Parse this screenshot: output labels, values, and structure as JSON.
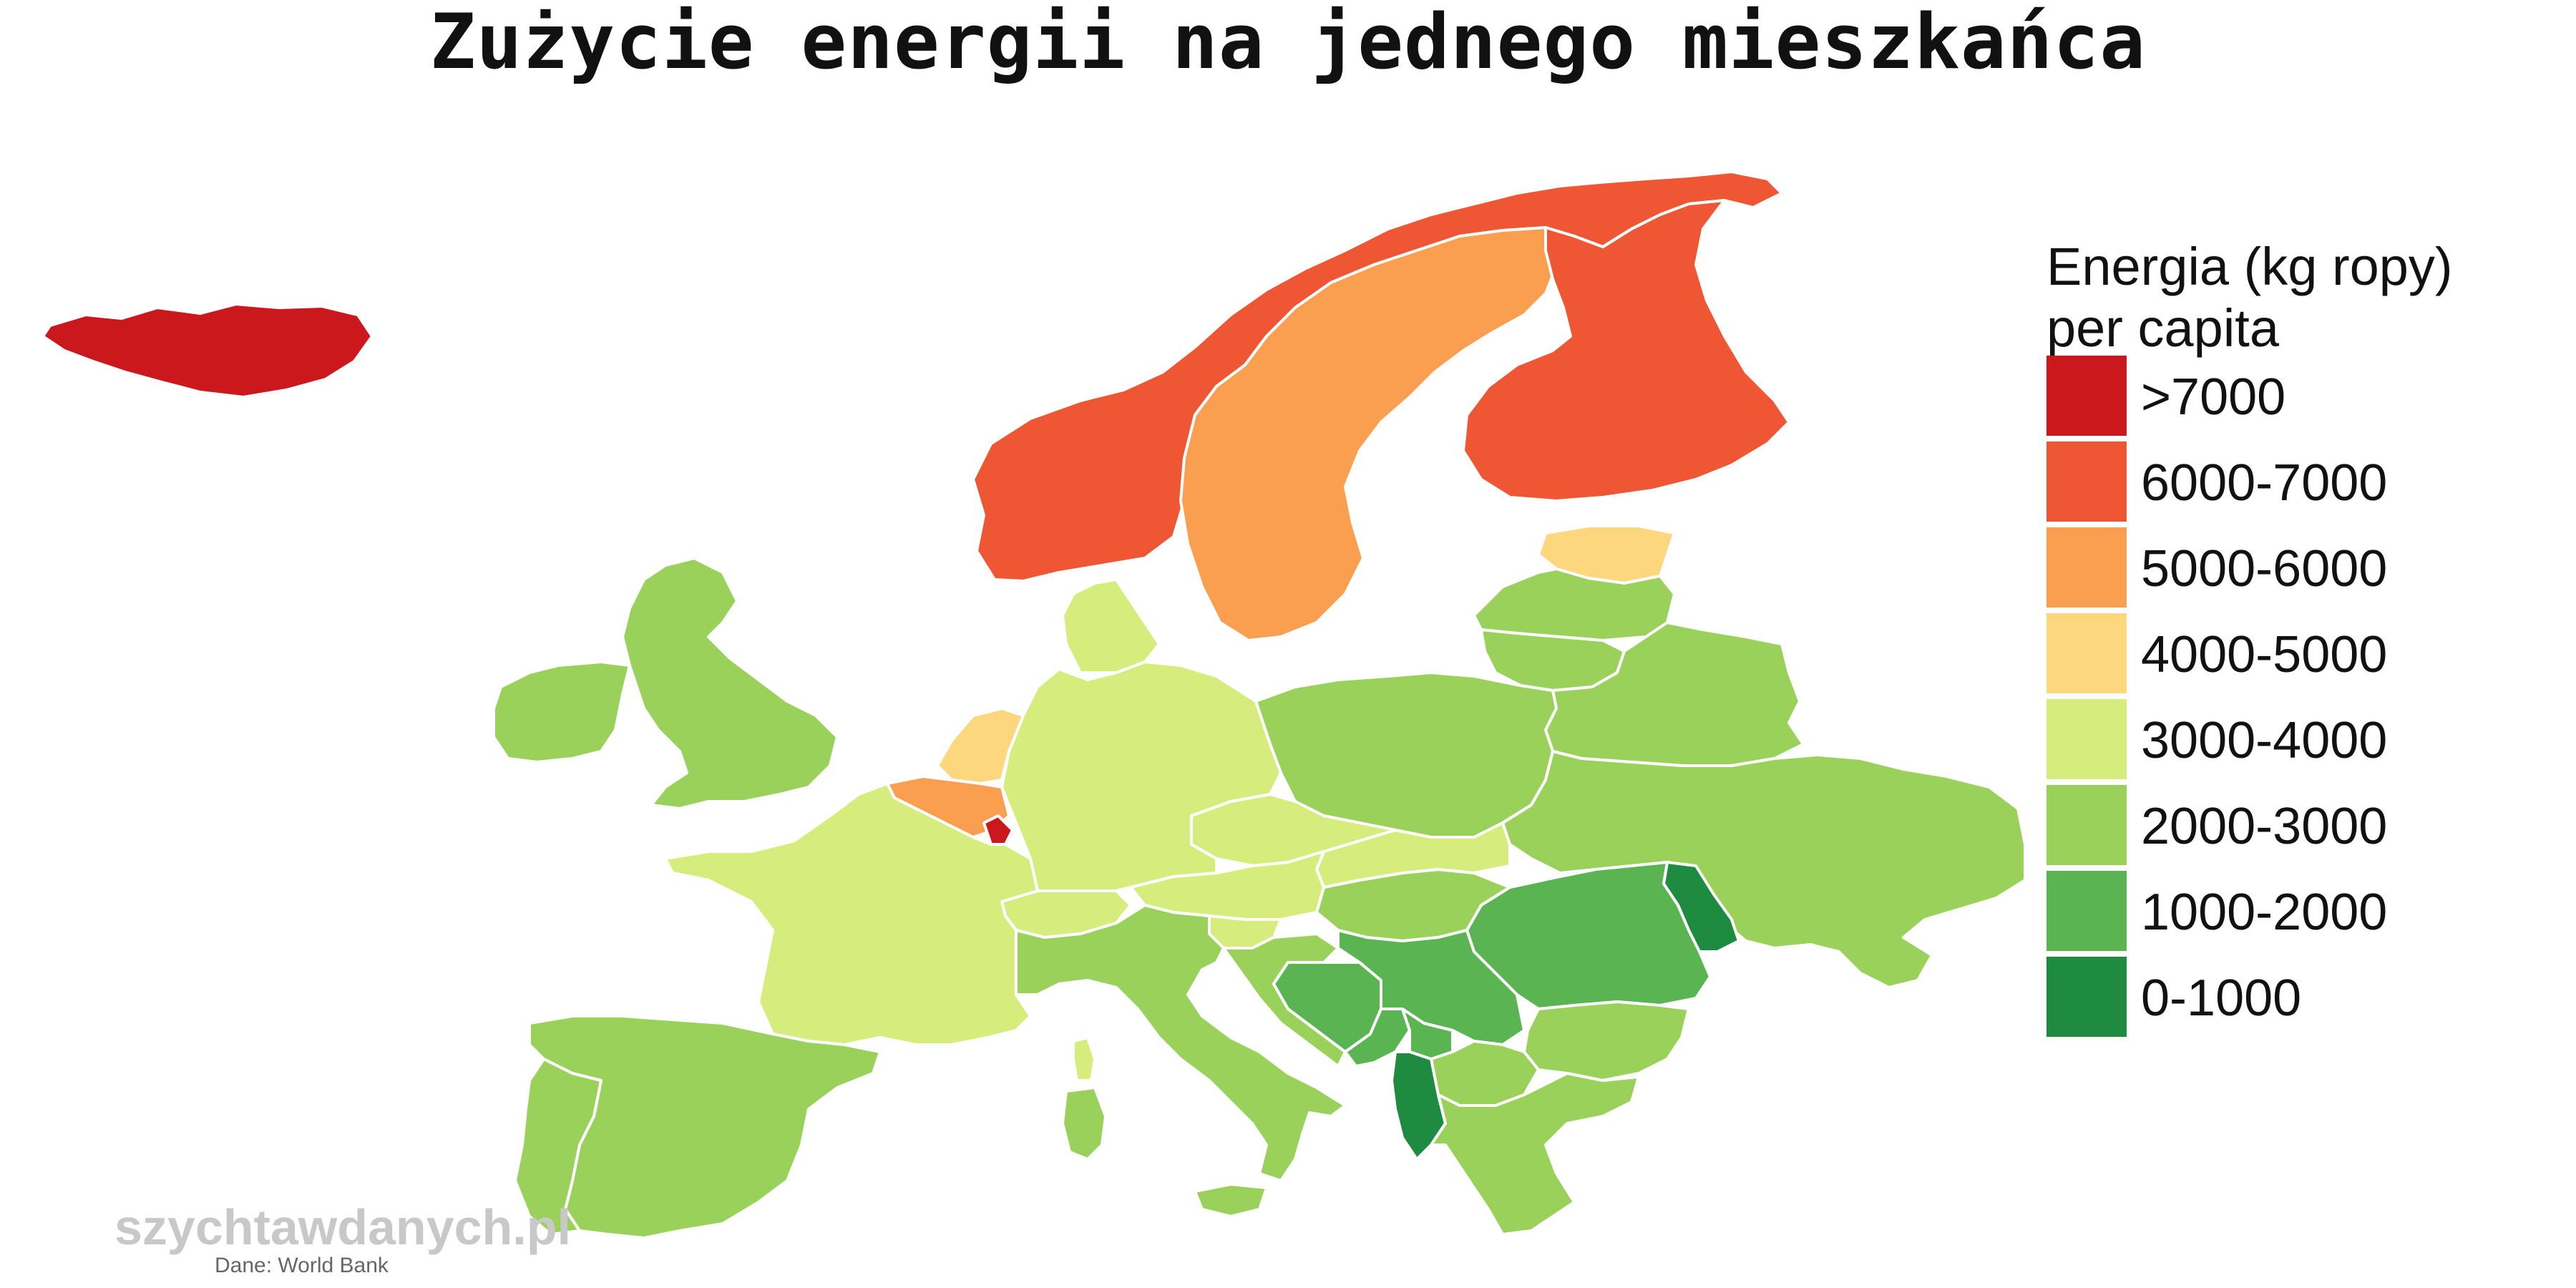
{
  "title": "Zużycie energii na jednego mieszkańca",
  "legend": {
    "title_line1": "Energia (kg ropy)",
    "title_line2": "per capita",
    "classes": [
      {
        "label": ">7000",
        "color": "#CB181D"
      },
      {
        "label": "6000-7000",
        "color": "#EF5634"
      },
      {
        "label": "5000-6000",
        "color": "#FA9E50"
      },
      {
        "label": "4000-5000",
        "color": "#FCD77E"
      },
      {
        "label": "3000-4000",
        "color": "#D6EC7C"
      },
      {
        "label": "2000-3000",
        "color": "#99D15A"
      },
      {
        "label": "1000-2000",
        "color": "#5AB452"
      },
      {
        "label": "0-1000",
        "color": "#1E8B40"
      }
    ]
  },
  "map_data": {
    "countries": [
      {
        "id": "iceland",
        "class": ">7000"
      },
      {
        "id": "norway",
        "class": "6000-7000"
      },
      {
        "id": "finland",
        "class": "6000-7000"
      },
      {
        "id": "sweden",
        "class": "5000-6000"
      },
      {
        "id": "belgium",
        "class": "5000-6000"
      },
      {
        "id": "luxembourg",
        "class": ">7000"
      },
      {
        "id": "estonia",
        "class": "4000-5000"
      },
      {
        "id": "netherlands",
        "class": "4000-5000"
      },
      {
        "id": "denmark",
        "class": "3000-4000"
      },
      {
        "id": "germany",
        "class": "3000-4000"
      },
      {
        "id": "france",
        "class": "3000-4000"
      },
      {
        "id": "czechia",
        "class": "3000-4000"
      },
      {
        "id": "austria",
        "class": "3000-4000"
      },
      {
        "id": "switzerland",
        "class": "3000-4000"
      },
      {
        "id": "slovenia",
        "class": "3000-4000"
      },
      {
        "id": "slovakia",
        "class": "3000-4000"
      },
      {
        "id": "corsica",
        "class": "3000-4000"
      },
      {
        "id": "united-kingdom",
        "class": "2000-3000"
      },
      {
        "id": "ireland",
        "class": "2000-3000"
      },
      {
        "id": "spain",
        "class": "2000-3000"
      },
      {
        "id": "portugal",
        "class": "2000-3000"
      },
      {
        "id": "italy",
        "class": "2000-3000"
      },
      {
        "id": "sardinia",
        "class": "2000-3000"
      },
      {
        "id": "sicily",
        "class": "2000-3000"
      },
      {
        "id": "poland",
        "class": "2000-3000"
      },
      {
        "id": "latvia",
        "class": "2000-3000"
      },
      {
        "id": "lithuania",
        "class": "2000-3000"
      },
      {
        "id": "belarus",
        "class": "2000-3000"
      },
      {
        "id": "ukraine",
        "class": "2000-3000"
      },
      {
        "id": "hungary",
        "class": "2000-3000"
      },
      {
        "id": "bulgaria",
        "class": "2000-3000"
      },
      {
        "id": "greece",
        "class": "2000-3000"
      },
      {
        "id": "croatia",
        "class": "2000-3000"
      },
      {
        "id": "north-macedonia",
        "class": "2000-3000"
      },
      {
        "id": "romania",
        "class": "1000-2000"
      },
      {
        "id": "serbia",
        "class": "1000-2000"
      },
      {
        "id": "bosnia",
        "class": "1000-2000"
      },
      {
        "id": "montenegro",
        "class": "1000-2000"
      },
      {
        "id": "kosovo",
        "class": "1000-2000"
      },
      {
        "id": "moldova",
        "class": "0-1000"
      },
      {
        "id": "albania",
        "class": "0-1000"
      }
    ]
  },
  "watermark": "szychtawdanych.pl",
  "source": "Dane: World Bank"
}
